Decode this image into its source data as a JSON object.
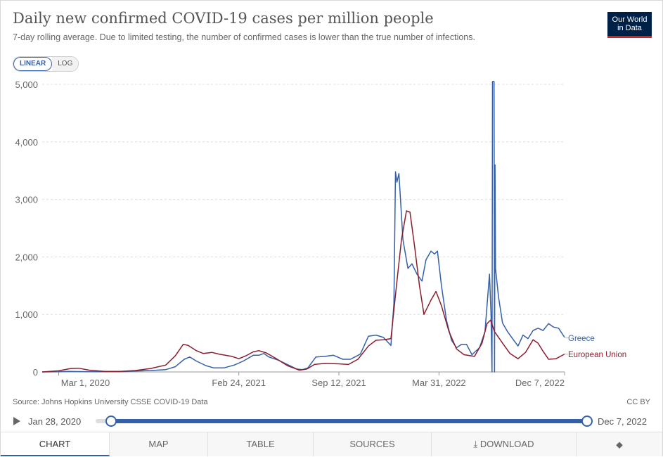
{
  "header": {
    "title": "Daily new confirmed COVID-19 cases per million people",
    "subtitle": "7-day rolling average. Due to limited testing, the number of confirmed cases is lower than the true number of infections.",
    "logo_line1": "Our World",
    "logo_line2": "in Data"
  },
  "scale": {
    "linear": "LINEAR",
    "log": "LOG",
    "selected": "LINEAR"
  },
  "footer": {
    "source": "Source: Johns Hopkins University CSSE COVID-19 Data",
    "license": "CC BY"
  },
  "timeline": {
    "start": "Jan 28, 2020",
    "end": "Dec 7, 2022",
    "range_fraction": [
      0,
      1
    ]
  },
  "tabs": [
    {
      "label": "CHART",
      "active": true
    },
    {
      "label": "MAP"
    },
    {
      "label": "TABLE"
    },
    {
      "label": "SOURCES"
    },
    {
      "label": "DOWNLOAD",
      "icon": "download-icon"
    },
    {
      "label": "",
      "icon": "share-icon"
    }
  ],
  "chart_data": {
    "type": "line",
    "x_type": "date",
    "xlim": [
      "2020-01-28",
      "2022-12-07"
    ],
    "ylim": [
      0,
      5000
    ],
    "yticks": [
      0,
      1000,
      2000,
      3000,
      4000,
      5000
    ],
    "ytick_labels": [
      "0",
      "1,000",
      "2,000",
      "3,000",
      "4,000",
      "5,000"
    ],
    "xticks": [
      "2020-03-01",
      "2021-02-24",
      "2021-09-12",
      "2022-03-31",
      "2022-12-07"
    ],
    "xtick_labels": [
      "Mar 1, 2020",
      "Feb 24, 2021",
      "Sep 12, 2021",
      "Mar 31, 2022",
      "Dec 7, 2022"
    ],
    "grid": true,
    "legend": "inline-right",
    "series": [
      {
        "name": "Greece",
        "color": "#3360a9",
        "points": [
          [
            "2020-01-28",
            0
          ],
          [
            "2020-03-01",
            2
          ],
          [
            "2020-03-20",
            8
          ],
          [
            "2020-04-10",
            6
          ],
          [
            "2020-05-15",
            2
          ],
          [
            "2020-07-01",
            2
          ],
          [
            "2020-08-01",
            15
          ],
          [
            "2020-09-01",
            25
          ],
          [
            "2020-10-01",
            40
          ],
          [
            "2020-10-20",
            90
          ],
          [
            "2020-11-07",
            220
          ],
          [
            "2020-11-18",
            260
          ],
          [
            "2020-12-01",
            190
          ],
          [
            "2020-12-20",
            110
          ],
          [
            "2021-01-05",
            70
          ],
          [
            "2021-01-25",
            70
          ],
          [
            "2021-02-15",
            120
          ],
          [
            "2021-03-05",
            190
          ],
          [
            "2021-03-25",
            290
          ],
          [
            "2021-04-05",
            290
          ],
          [
            "2021-04-15",
            320
          ],
          [
            "2021-04-25",
            260
          ],
          [
            "2021-05-15",
            200
          ],
          [
            "2021-06-01",
            130
          ],
          [
            "2021-06-20",
            50
          ],
          [
            "2021-07-01",
            40
          ],
          [
            "2021-07-12",
            70
          ],
          [
            "2021-07-28",
            260
          ],
          [
            "2021-08-15",
            270
          ],
          [
            "2021-09-01",
            290
          ],
          [
            "2021-09-20",
            220
          ],
          [
            "2021-10-05",
            220
          ],
          [
            "2021-10-25",
            310
          ],
          [
            "2021-11-10",
            620
          ],
          [
            "2021-11-25",
            640
          ],
          [
            "2021-12-10",
            600
          ],
          [
            "2021-12-25",
            460
          ],
          [
            "2021-12-31",
            1200
          ],
          [
            "2022-01-03",
            3480
          ],
          [
            "2022-01-06",
            3300
          ],
          [
            "2022-01-10",
            3450
          ],
          [
            "2022-01-18",
            2300
          ],
          [
            "2022-01-28",
            1800
          ],
          [
            "2022-02-05",
            1880
          ],
          [
            "2022-02-15",
            1700
          ],
          [
            "2022-02-25",
            1580
          ],
          [
            "2022-03-05",
            1950
          ],
          [
            "2022-03-15",
            2100
          ],
          [
            "2022-03-22",
            2050
          ],
          [
            "2022-03-28",
            2100
          ],
          [
            "2022-04-05",
            1500
          ],
          [
            "2022-04-15",
            900
          ],
          [
            "2022-04-25",
            550
          ],
          [
            "2022-05-05",
            420
          ],
          [
            "2022-05-15",
            480
          ],
          [
            "2022-05-25",
            480
          ],
          [
            "2022-06-05",
            300
          ],
          [
            "2022-06-20",
            420
          ],
          [
            "2022-07-01",
            700
          ],
          [
            "2022-07-10",
            1700
          ],
          [
            "2022-07-13",
            1000
          ],
          [
            "2022-07-15",
            0
          ],
          [
            "2022-07-16",
            5050
          ],
          [
            "2022-07-19",
            5050
          ],
          [
            "2022-07-20",
            0
          ],
          [
            "2022-07-21",
            3600
          ],
          [
            "2022-07-22",
            1800
          ],
          [
            "2022-07-28",
            1300
          ],
          [
            "2022-08-05",
            850
          ],
          [
            "2022-08-15",
            700
          ],
          [
            "2022-08-25",
            580
          ],
          [
            "2022-09-05",
            450
          ],
          [
            "2022-09-15",
            640
          ],
          [
            "2022-09-25",
            580
          ],
          [
            "2022-10-05",
            720
          ],
          [
            "2022-10-15",
            760
          ],
          [
            "2022-10-25",
            720
          ],
          [
            "2022-11-05",
            840
          ],
          [
            "2022-11-15",
            780
          ],
          [
            "2022-11-25",
            760
          ],
          [
            "2022-12-07",
            600
          ]
        ]
      },
      {
        "name": "European Union",
        "color": "#8b1e2d",
        "points": [
          [
            "2020-01-28",
            0
          ],
          [
            "2020-03-01",
            20
          ],
          [
            "2020-03-25",
            60
          ],
          [
            "2020-04-10",
            65
          ],
          [
            "2020-05-01",
            30
          ],
          [
            "2020-06-01",
            10
          ],
          [
            "2020-07-01",
            10
          ],
          [
            "2020-08-01",
            25
          ],
          [
            "2020-09-01",
            60
          ],
          [
            "2020-10-01",
            120
          ],
          [
            "2020-10-20",
            280
          ],
          [
            "2020-11-05",
            480
          ],
          [
            "2020-11-15",
            460
          ],
          [
            "2020-12-01",
            370
          ],
          [
            "2020-12-15",
            320
          ],
          [
            "2021-01-01",
            340
          ],
          [
            "2021-01-15",
            310
          ],
          [
            "2021-02-10",
            270
          ],
          [
            "2021-02-24",
            230
          ],
          [
            "2021-03-10",
            280
          ],
          [
            "2021-03-25",
            350
          ],
          [
            "2021-04-05",
            370
          ],
          [
            "2021-04-20",
            330
          ],
          [
            "2021-05-10",
            230
          ],
          [
            "2021-06-01",
            110
          ],
          [
            "2021-06-25",
            30
          ],
          [
            "2021-07-10",
            50
          ],
          [
            "2021-07-25",
            130
          ],
          [
            "2021-08-15",
            150
          ],
          [
            "2021-09-12",
            140
          ],
          [
            "2021-10-01",
            130
          ],
          [
            "2021-10-20",
            220
          ],
          [
            "2021-11-10",
            450
          ],
          [
            "2021-11-25",
            550
          ],
          [
            "2021-12-10",
            560
          ],
          [
            "2021-12-25",
            580
          ],
          [
            "2022-01-05",
            1500
          ],
          [
            "2022-01-15",
            2300
          ],
          [
            "2022-01-25",
            2800
          ],
          [
            "2022-02-01",
            2780
          ],
          [
            "2022-02-10",
            2200
          ],
          [
            "2022-02-20",
            1500
          ],
          [
            "2022-03-01",
            1000
          ],
          [
            "2022-03-15",
            1250
          ],
          [
            "2022-03-25",
            1400
          ],
          [
            "2022-04-05",
            1150
          ],
          [
            "2022-04-20",
            700
          ],
          [
            "2022-05-05",
            400
          ],
          [
            "2022-05-20",
            300
          ],
          [
            "2022-06-10",
            270
          ],
          [
            "2022-06-25",
            500
          ],
          [
            "2022-07-05",
            840
          ],
          [
            "2022-07-12",
            900
          ],
          [
            "2022-07-20",
            700
          ],
          [
            "2022-08-05",
            500
          ],
          [
            "2022-08-20",
            320
          ],
          [
            "2022-09-05",
            230
          ],
          [
            "2022-09-20",
            340
          ],
          [
            "2022-10-05",
            560
          ],
          [
            "2022-10-15",
            500
          ],
          [
            "2022-10-25",
            360
          ],
          [
            "2022-11-05",
            220
          ],
          [
            "2022-11-20",
            230
          ],
          [
            "2022-12-07",
            310
          ]
        ]
      }
    ]
  }
}
